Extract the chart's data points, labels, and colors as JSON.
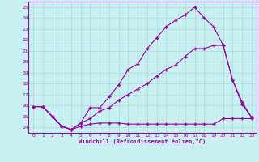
{
  "xlabel": "Windchill (Refroidissement éolien,°C)",
  "ylabel": "",
  "xlim": [
    -0.5,
    23.5
  ],
  "ylim": [
    13.5,
    25.5
  ],
  "xticks": [
    0,
    1,
    2,
    3,
    4,
    5,
    6,
    7,
    8,
    9,
    10,
    11,
    12,
    13,
    14,
    15,
    16,
    17,
    18,
    19,
    20,
    21,
    22,
    23
  ],
  "yticks": [
    14,
    15,
    16,
    17,
    18,
    19,
    20,
    21,
    22,
    23,
    24,
    25
  ],
  "bg_color": "#c8f0f0",
  "line_color": "#990099",
  "grid_color": "#b0dede",
  "curve1_x": [
    0,
    1,
    2,
    3,
    4,
    5,
    6,
    7,
    8,
    9,
    10,
    11,
    12,
    13,
    14,
    15,
    16,
    17,
    18,
    19,
    20,
    21,
    22,
    23
  ],
  "curve1_y": [
    15.9,
    15.9,
    15.0,
    14.1,
    13.8,
    14.1,
    14.3,
    14.4,
    14.4,
    14.4,
    14.3,
    14.3,
    14.3,
    14.3,
    14.3,
    14.3,
    14.3,
    14.3,
    14.3,
    14.3,
    14.8,
    14.8,
    14.8,
    14.8
  ],
  "curve2_x": [
    0,
    1,
    2,
    3,
    4,
    5,
    6,
    7,
    8,
    9,
    10,
    11,
    12,
    13,
    14,
    15,
    16,
    17,
    18,
    19,
    20,
    21,
    22,
    23
  ],
  "curve2_y": [
    15.9,
    15.9,
    15.0,
    14.1,
    13.8,
    14.4,
    14.8,
    15.5,
    15.8,
    16.5,
    17.0,
    17.5,
    18.0,
    18.7,
    19.3,
    19.7,
    20.5,
    21.2,
    21.2,
    21.5,
    21.5,
    18.3,
    16.1,
    14.9
  ],
  "curve3_x": [
    0,
    1,
    2,
    3,
    4,
    5,
    6,
    7,
    8,
    9,
    10,
    11,
    12,
    13,
    14,
    15,
    16,
    17,
    18,
    19,
    20,
    21,
    22,
    23
  ],
  "curve3_y": [
    15.9,
    15.9,
    15.0,
    14.1,
    13.8,
    14.4,
    15.8,
    15.8,
    16.8,
    17.9,
    19.3,
    19.8,
    21.2,
    22.2,
    23.2,
    23.8,
    24.3,
    25.0,
    24.0,
    23.2,
    21.5,
    18.3,
    16.3,
    14.9
  ]
}
